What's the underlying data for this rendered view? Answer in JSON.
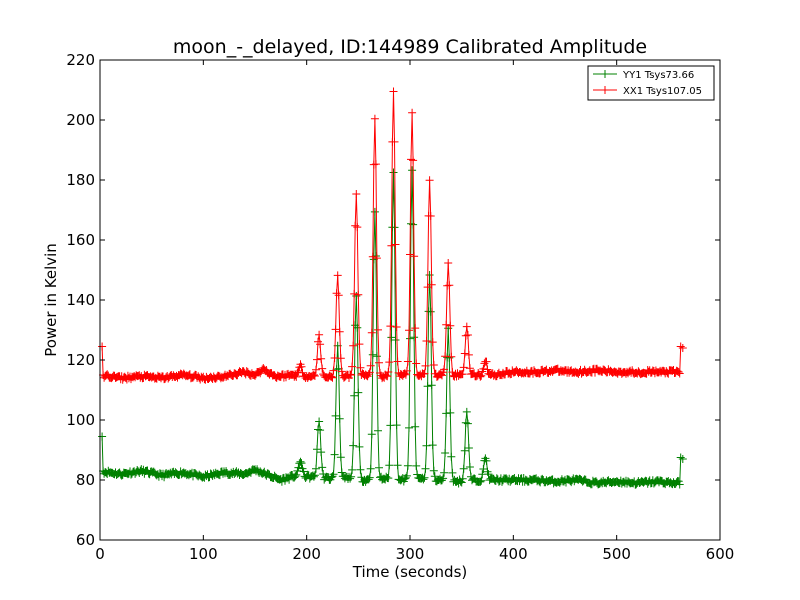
{
  "chart_data": {
    "type": "line",
    "title": "moon_-_delayed, ID:144989 Calibrated Amplitude",
    "xlabel": "Time (seconds)",
    "ylabel": "Power in Kelvin",
    "xlim": [
      0,
      600
    ],
    "ylim": [
      60,
      220
    ],
    "xticks": [
      0,
      100,
      200,
      300,
      400,
      500,
      600
    ],
    "yticks": [
      60,
      80,
      100,
      120,
      140,
      160,
      180,
      200,
      220
    ],
    "grid": false,
    "legend_position": "top-right",
    "marker": "plus",
    "series": [
      {
        "name": "YY1 Tsys73.66",
        "color": "#008000",
        "baseline": [
          [
            0,
            83
          ],
          [
            20,
            82
          ],
          [
            40,
            83
          ],
          [
            60,
            81.5
          ],
          [
            80,
            82.5
          ],
          [
            100,
            81
          ],
          [
            120,
            82.5
          ],
          [
            140,
            82
          ],
          [
            150,
            83.5
          ],
          [
            160,
            82
          ],
          [
            175,
            80
          ],
          [
            190,
            81.5
          ],
          [
            205,
            81
          ],
          [
            222,
            80.5
          ],
          [
            240,
            80.5
          ],
          [
            255,
            80
          ],
          [
            275,
            80.5
          ],
          [
            292,
            80
          ],
          [
            310,
            80.5
          ],
          [
            328,
            80
          ],
          [
            346,
            79.5
          ],
          [
            364,
            80
          ],
          [
            380,
            80
          ],
          [
            400,
            80
          ],
          [
            420,
            80
          ],
          [
            440,
            79.5
          ],
          [
            460,
            80
          ],
          [
            480,
            79
          ],
          [
            500,
            79.5
          ],
          [
            520,
            79
          ],
          [
            540,
            79.5
          ],
          [
            555,
            79
          ],
          [
            563,
            79
          ]
        ],
        "peaks": [
          [
            194,
            86.5
          ],
          [
            212,
            100
          ],
          [
            230,
            125
          ],
          [
            248,
            142
          ],
          [
            266,
            170
          ],
          [
            284,
            183
          ],
          [
            302,
            183
          ],
          [
            319,
            148
          ],
          [
            337,
            130
          ],
          [
            355,
            103
          ],
          [
            373,
            87.5
          ]
        ],
        "endpoints": [
          [
            2,
            94.5
          ],
          [
            3,
            83
          ],
          [
            561,
            78.5
          ],
          [
            562,
            87.5
          ],
          [
            564,
            87
          ]
        ]
      },
      {
        "name": "XX1 Tsys107.05",
        "color": "#ff0000",
        "baseline": [
          [
            0,
            115
          ],
          [
            20,
            114
          ],
          [
            40,
            114.5
          ],
          [
            60,
            114
          ],
          [
            80,
            115
          ],
          [
            100,
            114
          ],
          [
            120,
            114.5
          ],
          [
            140,
            116
          ],
          [
            150,
            115
          ],
          [
            158,
            117
          ],
          [
            170,
            114.5
          ],
          [
            185,
            115
          ],
          [
            205,
            114.5
          ],
          [
            222,
            114.5
          ],
          [
            240,
            114.5
          ],
          [
            258,
            115
          ],
          [
            276,
            114.5
          ],
          [
            294,
            115
          ],
          [
            312,
            115
          ],
          [
            330,
            115
          ],
          [
            348,
            115
          ],
          [
            366,
            115
          ],
          [
            380,
            115
          ],
          [
            400,
            116
          ],
          [
            420,
            116
          ],
          [
            440,
            116.5
          ],
          [
            460,
            116
          ],
          [
            480,
            116.5
          ],
          [
            500,
            116
          ],
          [
            520,
            116
          ],
          [
            540,
            116
          ],
          [
            555,
            116
          ],
          [
            563,
            116
          ]
        ],
        "peaks": [
          [
            194,
            118
          ],
          [
            212,
            128
          ],
          [
            230,
            148
          ],
          [
            248,
            175
          ],
          [
            266,
            200
          ],
          [
            284,
            210
          ],
          [
            302,
            202
          ],
          [
            319,
            180
          ],
          [
            337,
            152
          ],
          [
            355,
            131
          ],
          [
            373,
            120
          ]
        ],
        "endpoints": [
          [
            2,
            124.5
          ],
          [
            3,
            115
          ],
          [
            561,
            115.5
          ],
          [
            562,
            124.5
          ],
          [
            564,
            124
          ]
        ]
      }
    ]
  }
}
